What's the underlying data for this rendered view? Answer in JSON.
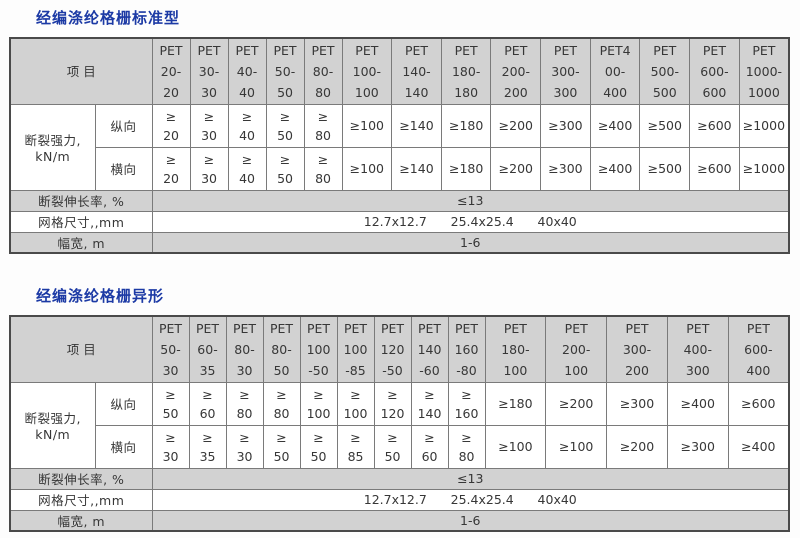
{
  "colors": {
    "title_blue": "#1c3aa5",
    "header_gray": "#d2d2d2",
    "inner_border": "#7a7a7a",
    "outer_border": "#4a4a4a",
    "text": "#373737"
  },
  "tables": [
    {
      "title": "经编涤纶格栅标准型",
      "item_header": "项 目",
      "columns": [
        "PET\n20-\n20",
        "PET\n30-\n30",
        "PET\n40-\n40",
        "PET\n50-\n50",
        "PET\n80-\n80",
        "PET\n100-\n100",
        "PET\n140-\n140",
        "PET\n180-\n180",
        "PET\n200-\n200",
        "PET\n300-\n300",
        "PET4\n00-\n400",
        "PET\n500-\n500",
        "PET\n600-\n600",
        "PET\n1000-\n1000"
      ],
      "strength": {
        "label": "断裂强力,\nkN/m",
        "rows": [
          {
            "dir": "纵向",
            "values": [
              "≥\n20",
              "≥\n30",
              "≥\n40",
              "≥\n50",
              "≥\n80",
              "≥100",
              "≥140",
              "≥180",
              "≥200",
              "≥300",
              "≥400",
              "≥500",
              "≥600",
              "≥1000"
            ]
          },
          {
            "dir": "横向",
            "values": [
              "≥\n20",
              "≥\n30",
              "≥\n40",
              "≥\n50",
              "≥\n80",
              "≥100",
              "≥140",
              "≥180",
              "≥200",
              "≥300",
              "≥400",
              "≥500",
              "≥600",
              "≥1000"
            ]
          }
        ]
      },
      "footer_rows": [
        {
          "label": "断裂伸长率, %",
          "value": "≤13"
        },
        {
          "label": "网格尺寸,,mm",
          "value": "12.7x12.7      25.4x25.4      40x40"
        },
        {
          "label": "幅宽, m",
          "value": "1-6"
        }
      ]
    },
    {
      "title": "经编涤纶格栅异形",
      "item_header": "项 目",
      "columns": [
        "PET\n50-\n30",
        "PET\n60-\n35",
        "PET\n80-\n30",
        "PET\n80-\n50",
        "PET\n100\n-50",
        "PET\n100\n-85",
        "PET\n120\n-50",
        "PET\n140\n-60",
        "PET\n160\n-80",
        "PET\n180-\n100",
        "PET\n200-\n100",
        "PET\n300-\n200",
        "PET\n400-\n300",
        "PET\n600-\n400"
      ],
      "strength": {
        "label": "断裂强力,\nkN/m",
        "rows": [
          {
            "dir": "纵向",
            "values": [
              "≥\n50",
              "≥\n60",
              "≥\n80",
              "≥\n80",
              "≥\n100",
              "≥\n100",
              "≥\n120",
              "≥\n140",
              "≥\n160",
              "≥180",
              "≥200",
              "≥300",
              "≥400",
              "≥600"
            ]
          },
          {
            "dir": "横向",
            "values": [
              "≥\n30",
              "≥\n35",
              "≥\n30",
              "≥\n50",
              "≥\n50",
              "≥\n85",
              "≥\n50",
              "≥\n60",
              "≥\n80",
              "≥100",
              "≥100",
              "≥200",
              "≥300",
              "≥400"
            ]
          }
        ]
      },
      "footer_rows": [
        {
          "label": "断裂伸长率, %",
          "value": "≤13"
        },
        {
          "label": "网格尺寸,,mm",
          "value": "12.7x12.7      25.4x25.4      40x40"
        },
        {
          "label": "幅宽, m",
          "value": "1-6"
        }
      ]
    }
  ]
}
